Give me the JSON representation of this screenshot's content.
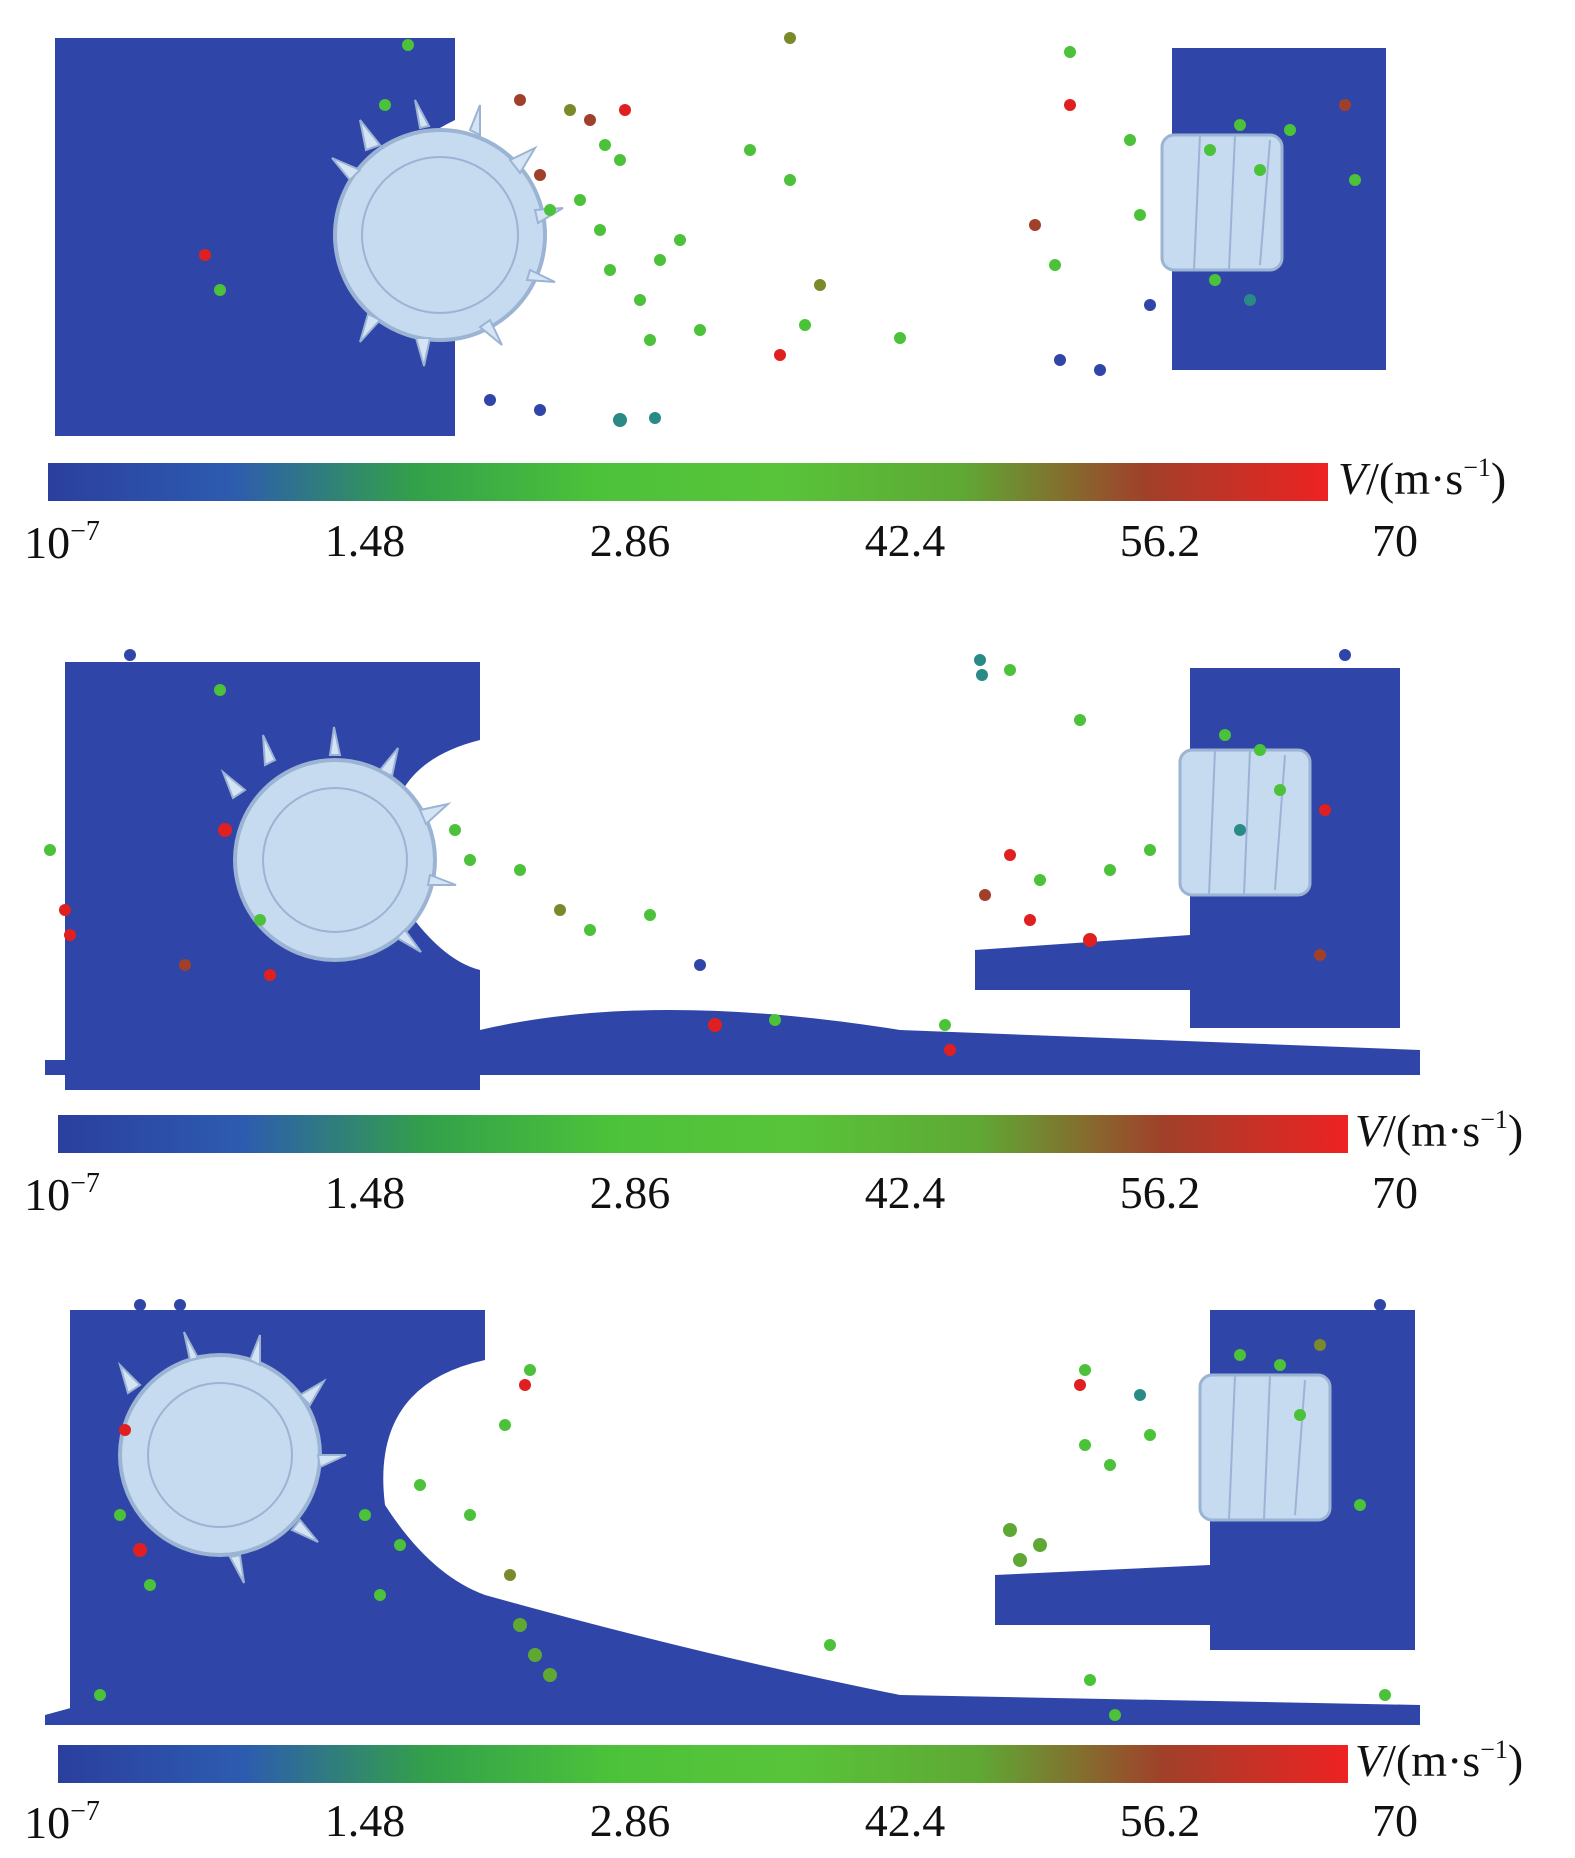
{
  "colorbar": {
    "unit_symbol": "V",
    "unit_rest": "/(m·s",
    "unit_exp": "−1",
    "unit_close": ")",
    "ticks": [
      "1.48",
      "2.86",
      "42.4",
      "56.2",
      "70"
    ],
    "tick_min_base": "10",
    "tick_min_exp": "−7",
    "stops": [
      "#2b3f9e",
      "#2d5bb0",
      "#33a04a",
      "#4cc23a",
      "#58c43a",
      "#5fa834",
      "#a0402a",
      "#ee2222"
    ]
  },
  "colors": {
    "bulk": "#2f45a8",
    "drum": "#c6daf0",
    "drum_edge": "#9bb4d4",
    "particle_green": "#4cc23a",
    "particle_teal": "#2a8a86",
    "particle_red": "#e02020",
    "particle_olive": "#7a8a2a"
  },
  "panels": [
    {
      "id": "frame-1"
    },
    {
      "id": "frame-2"
    },
    {
      "id": "frame-3"
    }
  ]
}
